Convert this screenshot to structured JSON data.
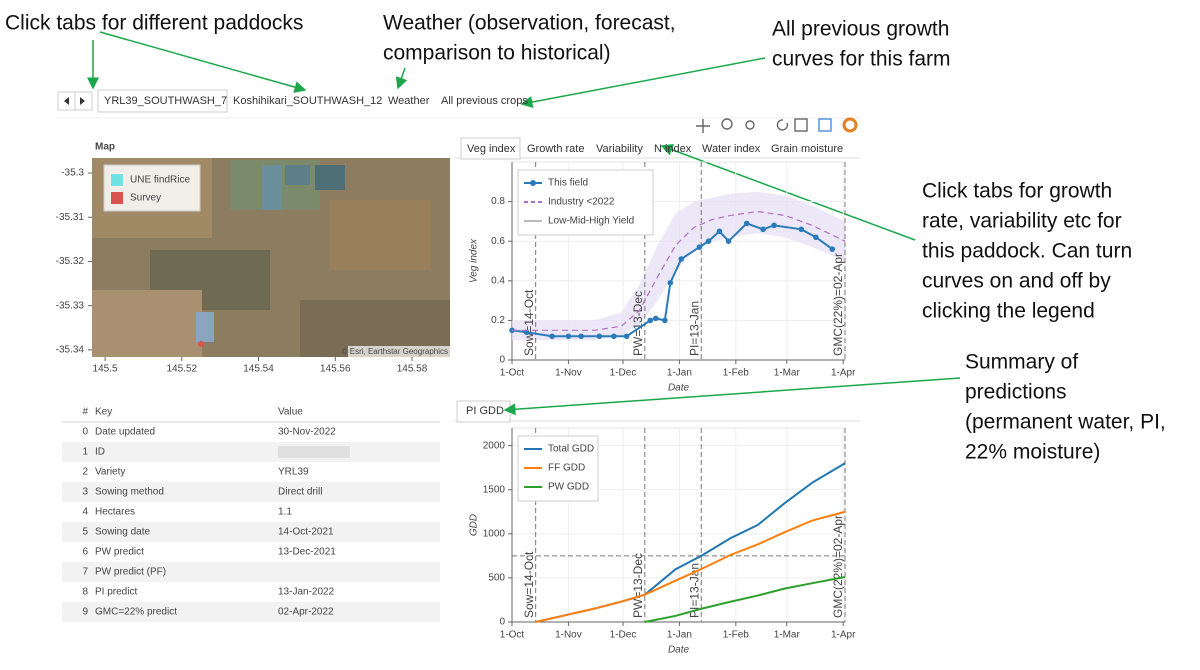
{
  "annotations": [
    {
      "lines": [
        "Click tabs for different paddocks"
      ]
    },
    {
      "lines": [
        "Weather (observation, forecast,",
        "comparison to historical)"
      ]
    },
    {
      "lines": [
        "All previous growth",
        "curves for this farm"
      ]
    },
    {
      "lines": [
        "Click tabs for growth",
        "rate, variability etc for",
        "this paddock. Can turn",
        "curves on and off by",
        "clicking the legend"
      ]
    },
    {
      "lines": [
        "Summary of",
        "predictions",
        "(permanent water, PI,",
        "22% moisture)"
      ]
    }
  ],
  "paddock_tabs": [
    "YRL39_SOUTHWASH_7",
    "Koshihikari_SOUTHWASH_12",
    "Weather",
    "All previous crops"
  ],
  "chart_tabs": [
    "Veg index",
    "Growth rate",
    "Variability",
    "N index",
    "Water index",
    "Grain moisture"
  ],
  "gdd_tab": "PI GDD",
  "map": {
    "title": "Map",
    "legend": [
      {
        "name": "UNE findRice",
        "color": "#6fe3e3"
      },
      {
        "name": "Survey",
        "color": "#d9534f"
      }
    ],
    "attribution": "© Esri, Earthstar Geographics",
    "xlim": [
      145.4966,
      145.5899
    ],
    "ylim": [
      -35.3416,
      -35.2966
    ],
    "xticks": [
      145.5,
      145.52,
      145.54,
      145.56,
      145.58
    ],
    "yticks": [
      -35.3,
      -35.31,
      -35.32,
      -35.33,
      -35.34
    ]
  },
  "table": {
    "header": [
      "#",
      "Key",
      "Value"
    ],
    "rows": [
      [
        0,
        "Date updated",
        "30-Nov-2022"
      ],
      [
        1,
        "ID",
        null
      ],
      [
        2,
        "Variety",
        "YRL39"
      ],
      [
        3,
        "Sowing method",
        "Direct drill"
      ],
      [
        4,
        "Hectares",
        "1.1"
      ],
      [
        5,
        "Sowing date",
        "14-Oct-2021"
      ],
      [
        6,
        "PW predict",
        "13-Dec-2021"
      ],
      [
        7,
        "PW predict (PF)",
        null
      ],
      [
        8,
        "PI predict",
        "13-Jan-2022"
      ],
      [
        9,
        "GMC=22% predict",
        "02-Apr-2022"
      ]
    ]
  },
  "chart_data": [
    {
      "type": "line",
      "xlabel": "Date",
      "ylabel": "Veg index",
      "legend": "top-left",
      "grid": true,
      "xlim": [
        0,
        183
      ],
      "ylim": [
        0,
        1
      ],
      "xticks": [
        {
          "value": 0,
          "label": "1-Oct"
        },
        {
          "value": 31,
          "label": "1-Nov"
        },
        {
          "value": 61,
          "label": "1-Dec"
        },
        {
          "value": 92,
          "label": "1-Jan"
        },
        {
          "value": 123,
          "label": "1-Feb"
        },
        {
          "value": 151,
          "label": "1-Mar"
        },
        {
          "value": 182,
          "label": "1-Apr"
        }
      ],
      "yticks": [
        0,
        0.2,
        0.4,
        0.6,
        0.8
      ],
      "series": [
        {
          "name": "This field",
          "color": "#2b7bba",
          "markers": true,
          "x": [
            0,
            8,
            22,
            31,
            38,
            48,
            56,
            63,
            76,
            79,
            84,
            87,
            93,
            103,
            108,
            114,
            119,
            129,
            138,
            144,
            159,
            167,
            176
          ],
          "values": [
            0.15,
            0.14,
            0.12,
            0.12,
            0.12,
            0.12,
            0.12,
            0.12,
            0.2,
            0.21,
            0.2,
            0.39,
            0.51,
            0.57,
            0.6,
            0.65,
            0.6,
            0.69,
            0.66,
            0.68,
            0.66,
            0.62,
            0.56
          ]
        },
        {
          "name": "Industry <2022",
          "color": "#b06fc4",
          "dashed": true,
          "x": [
            0,
            15,
            30,
            45,
            60,
            70,
            80,
            90,
            100,
            110,
            120,
            135,
            150,
            165,
            183
          ],
          "values": [
            0.15,
            0.15,
            0.15,
            0.15,
            0.17,
            0.25,
            0.42,
            0.58,
            0.67,
            0.71,
            0.73,
            0.75,
            0.73,
            0.68,
            0.6
          ]
        },
        {
          "name": "Low-Mid-High Yield",
          "color": "#e6def5",
          "band": true,
          "x": [
            0,
            15,
            30,
            45,
            60,
            70,
            80,
            90,
            100,
            110,
            120,
            135,
            150,
            165,
            183
          ],
          "low": [
            0.1,
            0.1,
            0.1,
            0.1,
            0.12,
            0.18,
            0.3,
            0.45,
            0.55,
            0.6,
            0.62,
            0.64,
            0.62,
            0.57,
            0.5
          ],
          "high": [
            0.2,
            0.2,
            0.2,
            0.2,
            0.24,
            0.38,
            0.58,
            0.74,
            0.8,
            0.82,
            0.84,
            0.85,
            0.83,
            0.78,
            0.7
          ]
        }
      ],
      "vlines": [
        {
          "x": 13,
          "label": "Sow=14-Oct"
        },
        {
          "x": 73,
          "label": "PW=13-Dec"
        },
        {
          "x": 104,
          "label": "PI=13-Jan"
        },
        {
          "x": 183,
          "label": "GMC(22%)=02-Apr"
        }
      ]
    },
    {
      "type": "line",
      "xlabel": "Date",
      "ylabel": "GDD",
      "legend": "top-left",
      "grid": true,
      "xlim": [
        0,
        183
      ],
      "ylim": [
        0,
        2200
      ],
      "xticks": [
        {
          "value": 0,
          "label": "1-Oct"
        },
        {
          "value": 31,
          "label": "1-Nov"
        },
        {
          "value": 61,
          "label": "1-Dec"
        },
        {
          "value": 92,
          "label": "1-Jan"
        },
        {
          "value": 123,
          "label": "1-Feb"
        },
        {
          "value": 151,
          "label": "1-Mar"
        },
        {
          "value": 182,
          "label": "1-Apr"
        }
      ],
      "yticks": [
        0,
        500,
        1000,
        1500,
        2000
      ],
      "series": [
        {
          "name": "Total GDD",
          "color": "#1f77b4",
          "x": [
            13,
            30,
            45,
            60,
            73,
            90,
            104,
            120,
            135,
            150,
            165,
            183
          ],
          "values": [
            0,
            80,
            150,
            230,
            310,
            600,
            750,
            950,
            1100,
            1350,
            1580,
            1800
          ]
        },
        {
          "name": "FF GDD",
          "color": "#ff7f0e",
          "x": [
            13,
            30,
            45,
            60,
            73,
            90,
            104,
            120,
            135,
            150,
            165,
            183
          ],
          "values": [
            0,
            80,
            150,
            230,
            310,
            470,
            600,
            760,
            880,
            1020,
            1150,
            1250
          ]
        },
        {
          "name": "PW GDD",
          "color": "#2ca02c",
          "x": [
            73,
            90,
            104,
            120,
            135,
            150,
            165,
            183
          ],
          "values": [
            0,
            70,
            150,
            230,
            300,
            380,
            440,
            510
          ]
        }
      ],
      "vlines": [
        {
          "x": 13,
          "label": "Sow=14-Oct"
        },
        {
          "x": 73,
          "label": "PW=13-Dec"
        },
        {
          "x": 104,
          "label": "PI=13-Jan"
        },
        {
          "x": 183,
          "label": "GMC(22%)=02-Apr"
        }
      ],
      "hlines": [
        750
      ]
    }
  ]
}
